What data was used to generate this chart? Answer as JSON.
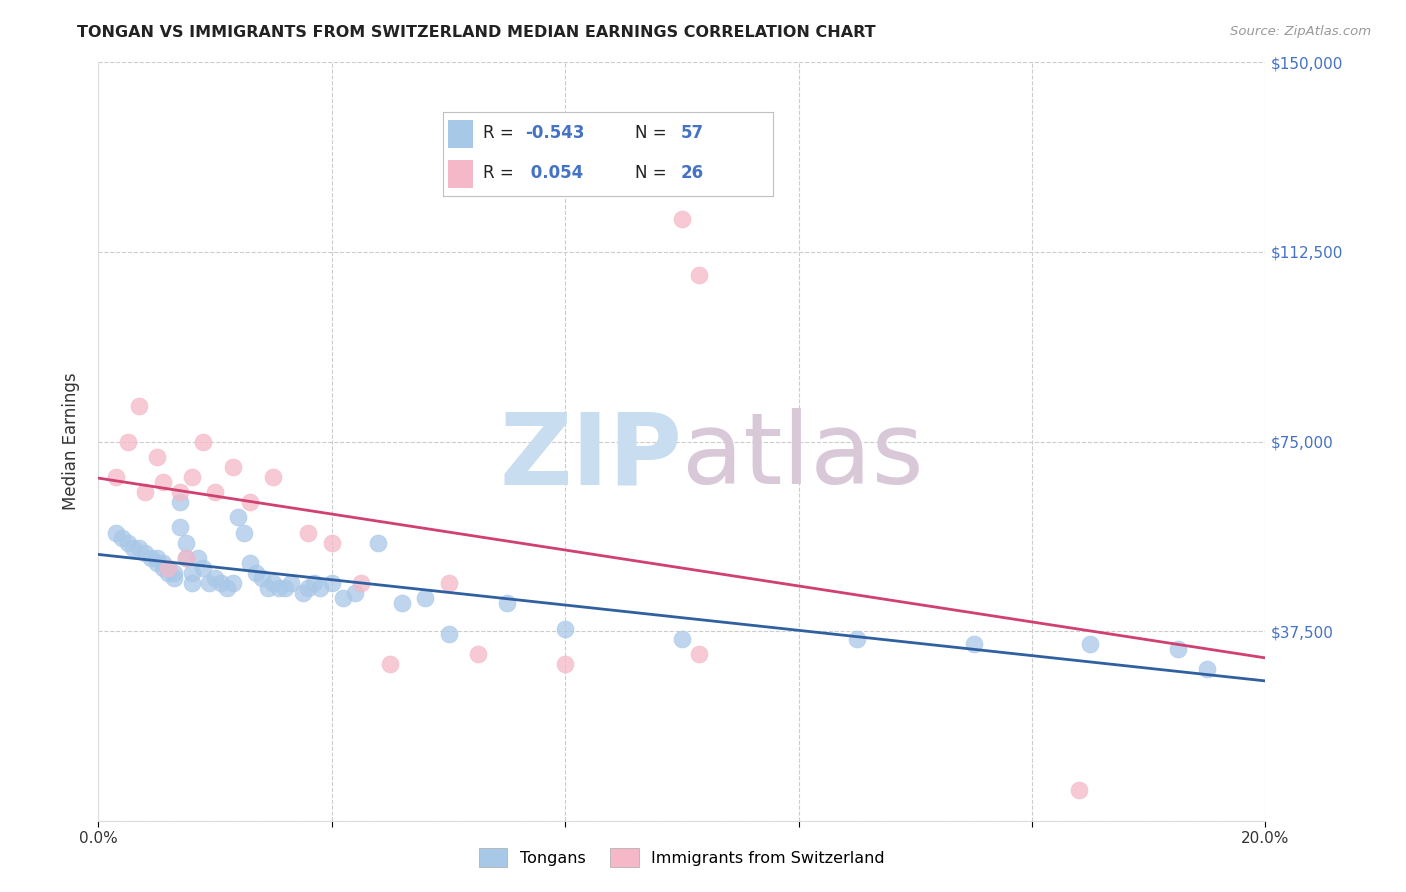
{
  "title": "TONGAN VS IMMIGRANTS FROM SWITZERLAND MEDIAN EARNINGS CORRELATION CHART",
  "source": "Source: ZipAtlas.com",
  "ylabel": "Median Earnings",
  "xlim": [
    0.0,
    0.2
  ],
  "ylim": [
    0,
    150000
  ],
  "yticks": [
    0,
    37500,
    75000,
    112500,
    150000
  ],
  "ytick_labels_right": [
    "",
    "$37,500",
    "$75,000",
    "$112,500",
    "$150,000"
  ],
  "xticks": [
    0.0,
    0.04,
    0.08,
    0.12,
    0.16,
    0.2
  ],
  "blue_R": -0.543,
  "blue_N": 57,
  "pink_R": 0.054,
  "pink_N": 26,
  "blue_color": "#a8c8e8",
  "pink_color": "#f4b8c8",
  "blue_line_color": "#3060a0",
  "pink_line_color": "#d04070",
  "background_color": "#ffffff",
  "grid_color": "#cccccc",
  "watermark_zip_color": "#c8ddf0",
  "watermark_atlas_color": "#d8c8d8",
  "title_color": "#222222",
  "source_color": "#999999",
  "ylabel_color": "#333333",
  "ytick_color": "#4472c4",
  "xtick_color": "#333333",
  "legend_box_color": "#e8e8e8",
  "legend_text_color": "#222222",
  "legend_val_color": "#4472c4",
  "blue_x": [
    0.003,
    0.004,
    0.005,
    0.006,
    0.007,
    0.008,
    0.009,
    0.01,
    0.01,
    0.011,
    0.011,
    0.012,
    0.012,
    0.013,
    0.013,
    0.014,
    0.014,
    0.015,
    0.015,
    0.016,
    0.016,
    0.017,
    0.018,
    0.019,
    0.02,
    0.021,
    0.022,
    0.023,
    0.024,
    0.025,
    0.026,
    0.027,
    0.028,
    0.029,
    0.03,
    0.031,
    0.032,
    0.033,
    0.035,
    0.036,
    0.037,
    0.038,
    0.04,
    0.042,
    0.044,
    0.048,
    0.052,
    0.056,
    0.06,
    0.07,
    0.08,
    0.1,
    0.13,
    0.15,
    0.17,
    0.185,
    0.19
  ],
  "blue_y": [
    57000,
    56000,
    55000,
    54000,
    54000,
    53000,
    52000,
    52000,
    51000,
    51000,
    50000,
    50000,
    49000,
    49000,
    48000,
    63000,
    58000,
    55000,
    52000,
    49000,
    47000,
    52000,
    50000,
    47000,
    48000,
    47000,
    46000,
    47000,
    60000,
    57000,
    51000,
    49000,
    48000,
    46000,
    47000,
    46000,
    46000,
    47000,
    45000,
    46000,
    47000,
    46000,
    47000,
    44000,
    45000,
    55000,
    43000,
    44000,
    37000,
    43000,
    38000,
    36000,
    36000,
    35000,
    35000,
    34000,
    30000
  ],
  "pink_x": [
    0.003,
    0.005,
    0.007,
    0.008,
    0.01,
    0.011,
    0.012,
    0.014,
    0.015,
    0.016,
    0.018,
    0.02,
    0.023,
    0.026,
    0.03,
    0.036,
    0.04,
    0.045,
    0.05,
    0.06,
    0.065,
    0.08,
    0.1,
    0.103,
    0.168,
    0.103
  ],
  "pink_y": [
    68000,
    75000,
    82000,
    65000,
    72000,
    67000,
    50000,
    65000,
    52000,
    68000,
    75000,
    65000,
    70000,
    63000,
    68000,
    57000,
    55000,
    47000,
    31000,
    47000,
    33000,
    31000,
    119000,
    33000,
    6000,
    108000
  ]
}
